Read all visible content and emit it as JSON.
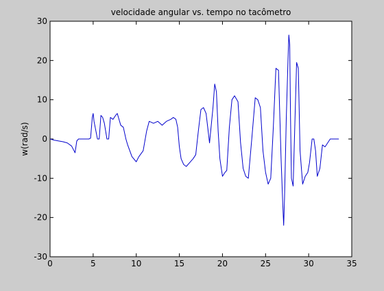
{
  "chart_data": {
    "type": "line",
    "title": "velocidade angular vs. tempo no tacômetro",
    "xlabel": "",
    "ylabel": "w(rad/s)",
    "xlim": [
      0,
      35
    ],
    "ylim": [
      -30,
      30
    ],
    "xticks": [
      0,
      5,
      10,
      15,
      20,
      25,
      30,
      35
    ],
    "yticks": [
      -30,
      -20,
      -10,
      0,
      10,
      20,
      30
    ],
    "xtick_labels": [
      "0",
      "5",
      "10",
      "15",
      "20",
      "25",
      "30",
      "35"
    ],
    "ytick_labels": [
      "-30",
      "-20",
      "-10",
      "0",
      "10",
      "20",
      "30"
    ],
    "grid": false,
    "series": [
      {
        "color": "#0000cc",
        "x": [
          0,
          0.5,
          1.0,
          1.5,
          2.0,
          2.5,
          2.9,
          3.1,
          3.3,
          4.0,
          4.5,
          4.7,
          4.9,
          5.0,
          5.1,
          5.5,
          5.7,
          5.9,
          6.1,
          6.3,
          6.6,
          6.8,
          7.0,
          7.3,
          7.6,
          7.8,
          8.0,
          8.2,
          8.5,
          8.8,
          9.0,
          9.5,
          10.0,
          10.3,
          10.8,
          11.2,
          11.5,
          12.0,
          12.5,
          13.0,
          13.5,
          14.0,
          14.3,
          14.6,
          14.8,
          15.0,
          15.2,
          15.5,
          15.8,
          16.2,
          16.6,
          16.9,
          17.2,
          17.5,
          17.8,
          18.1,
          18.5,
          18.9,
          19.1,
          19.3,
          19.5,
          19.7,
          20.0,
          20.3,
          20.5,
          20.8,
          21.1,
          21.4,
          21.8,
          22.1,
          22.4,
          22.7,
          23.0,
          23.4,
          23.8,
          24.1,
          24.4,
          24.7,
          25.0,
          25.3,
          25.6,
          25.9,
          26.2,
          26.5,
          26.8,
          27.0,
          27.1,
          27.2,
          27.4,
          27.6,
          27.7,
          27.8,
          27.9,
          28.0,
          28.2,
          28.4,
          28.6,
          28.8,
          29.0,
          29.3,
          29.6,
          29.9,
          30.1,
          30.4,
          30.6,
          30.8,
          31.0,
          31.3,
          31.6,
          31.9,
          32.2,
          32.5,
          33.0,
          33.5
        ],
        "y": [
          0,
          -0.3,
          -0.5,
          -0.7,
          -1.0,
          -1.8,
          -3.5,
          -0.5,
          0,
          0,
          0,
          0.2,
          5.5,
          6.5,
          4.5,
          0,
          0,
          6.0,
          5.5,
          4.0,
          0,
          0,
          5.5,
          5.0,
          6.0,
          6.5,
          5.0,
          3.5,
          3.0,
          0,
          -1.5,
          -4.5,
          -5.8,
          -4.5,
          -3.0,
          2.0,
          4.5,
          4.0,
          4.5,
          3.5,
          4.5,
          5.0,
          5.5,
          5.0,
          3.0,
          -2.0,
          -5.0,
          -6.5,
          -7.0,
          -6.0,
          -5.0,
          -4.0,
          2.0,
          7.5,
          8.0,
          6.5,
          -1.0,
          8.0,
          14.0,
          12.0,
          2.0,
          -5.0,
          -9.5,
          -8.5,
          -8.0,
          3.0,
          10.0,
          11.0,
          9.5,
          -1.0,
          -7.5,
          -9.5,
          -10.0,
          0.0,
          10.5,
          10.0,
          8.0,
          -3.0,
          -8.5,
          -11.5,
          -10.0,
          3.0,
          18.0,
          17.5,
          -5.0,
          -17.0,
          -22.0,
          -15.0,
          5.0,
          20.0,
          26.5,
          24.0,
          5.0,
          -10.0,
          -12.0,
          4.0,
          19.5,
          18.0,
          -3.0,
          -11.5,
          -9.5,
          -8.5,
          -6.0,
          0,
          0,
          -3.0,
          -9.5,
          -7.5,
          -1.5,
          -2.0,
          -1.0,
          0,
          0,
          0
        ]
      }
    ]
  }
}
